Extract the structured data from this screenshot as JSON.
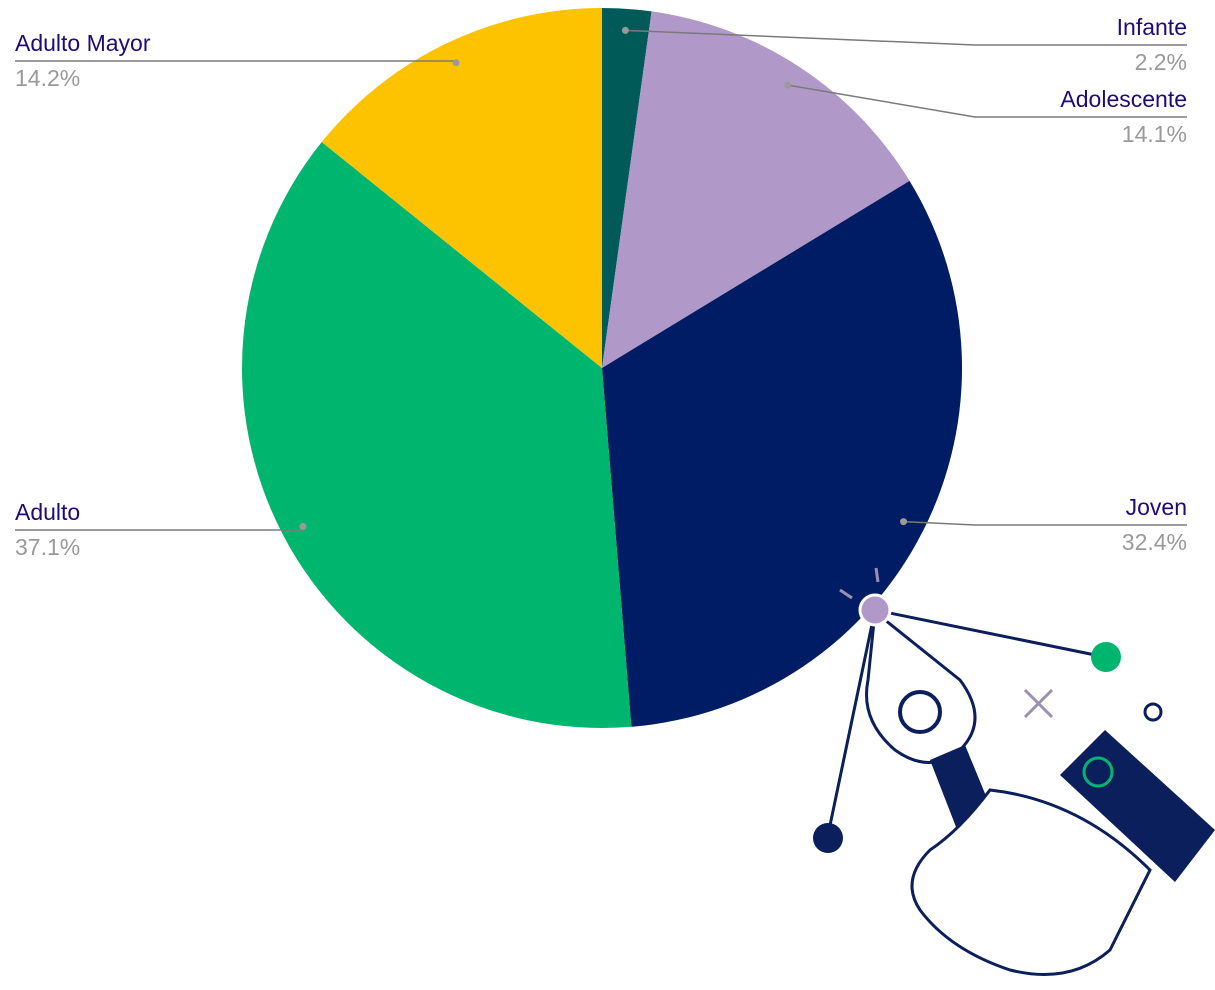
{
  "chart_data": {
    "type": "pie",
    "categories": [
      "Infante",
      "Adolescente",
      "Joven",
      "Adulto",
      "Adulto Mayor"
    ],
    "values": [
      2.2,
      14.1,
      32.4,
      37.1,
      14.2
    ],
    "value_labels": [
      "2.2%",
      "14.1%",
      "32.4%",
      "37.1%",
      "14.2%"
    ],
    "colors": [
      "#005b58",
      "#b098c8",
      "#001c64",
      "#00b56e",
      "#fdc300"
    ]
  }
}
